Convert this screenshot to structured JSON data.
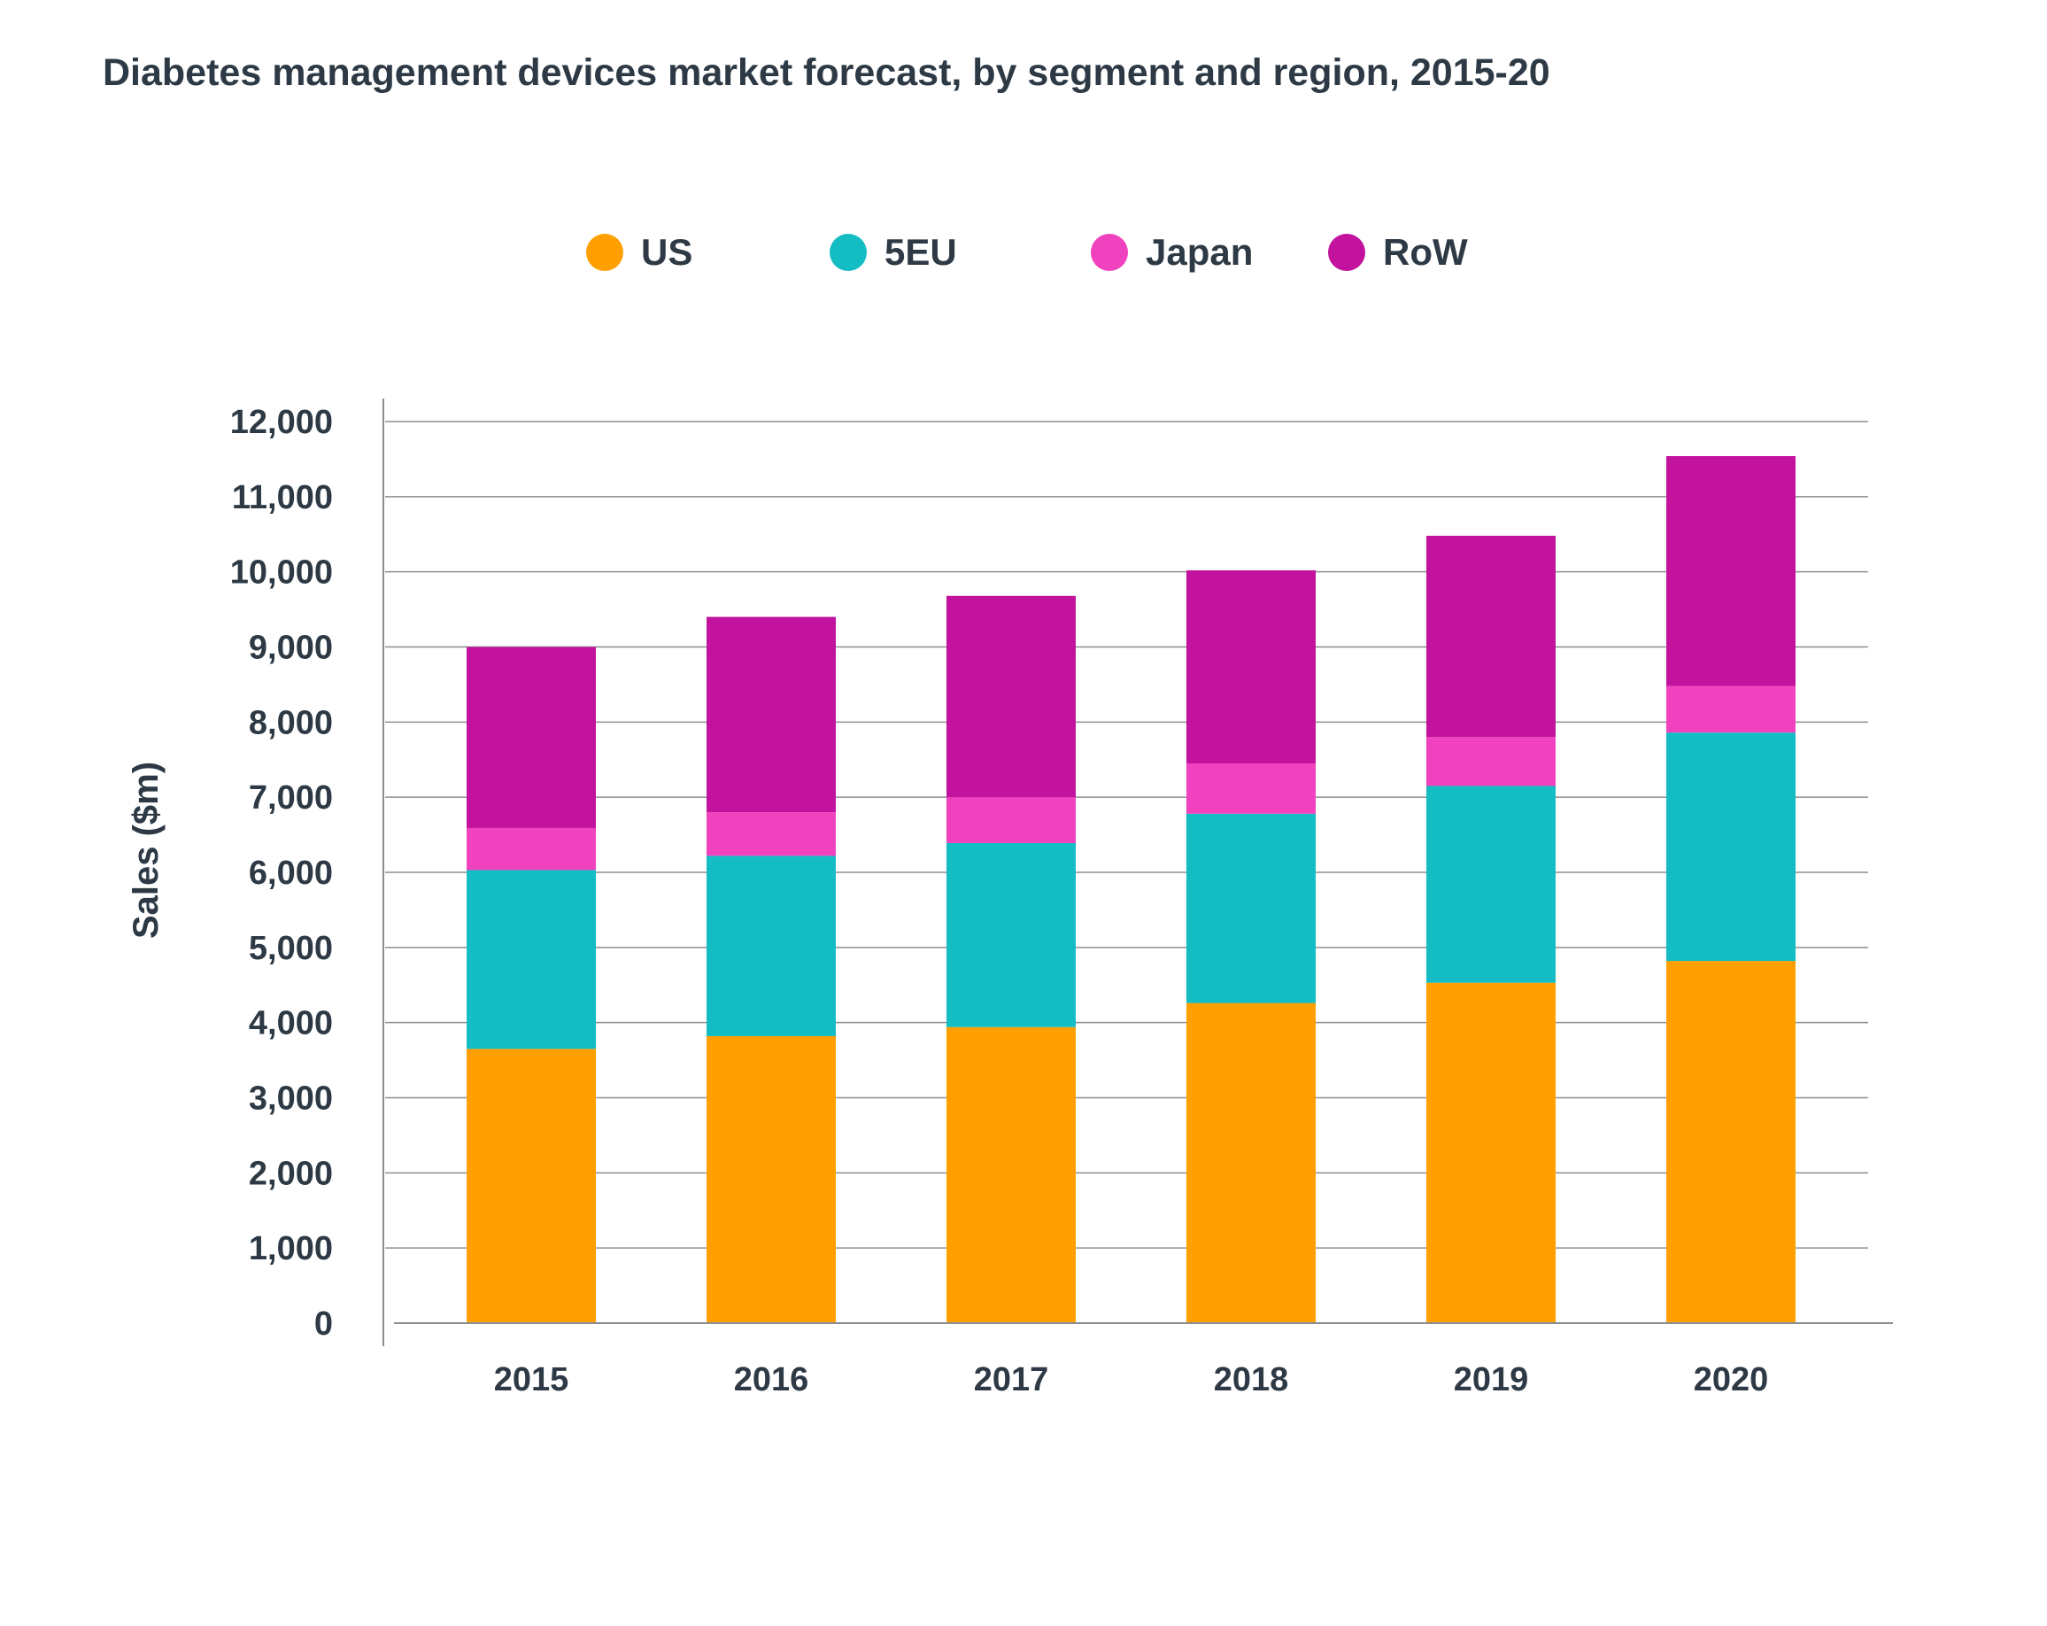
{
  "chart_data": {
    "type": "bar",
    "stacked": true,
    "title": "Diabetes management devices market forecast, by segment and region, 2015-20",
    "xlabel": "",
    "ylabel": "Sales ($m)",
    "ylim": [
      0,
      12000
    ],
    "yticks": [
      0,
      1000,
      2000,
      3000,
      4000,
      5000,
      6000,
      7000,
      8000,
      9000,
      10000,
      11000,
      12000
    ],
    "ytick_labels": [
      "0",
      "1,000",
      "2,000",
      "3,000",
      "4,000",
      "5,000",
      "6,000",
      "7,000",
      "8,000",
      "9,000",
      "10,000",
      "11,000",
      "12,000"
    ],
    "grid": true,
    "legend_position": "top",
    "categories": [
      "2015",
      "2016",
      "2017",
      "2018",
      "2019",
      "2020"
    ],
    "series": [
      {
        "name": "US",
        "color": "#ff9f00",
        "values": [
          3650,
          3820,
          3940,
          4260,
          4530,
          4820
        ]
      },
      {
        "name": "5EU",
        "color": "#14bcc4",
        "values": [
          2380,
          2400,
          2450,
          2520,
          2620,
          3040
        ]
      },
      {
        "name": "Japan",
        "color": "#f042be",
        "values": [
          560,
          580,
          610,
          670,
          650,
          620
        ]
      },
      {
        "name": "RoW",
        "color": "#c2129e",
        "values": [
          2410,
          2600,
          2680,
          2570,
          2680,
          3060
        ]
      }
    ]
  }
}
